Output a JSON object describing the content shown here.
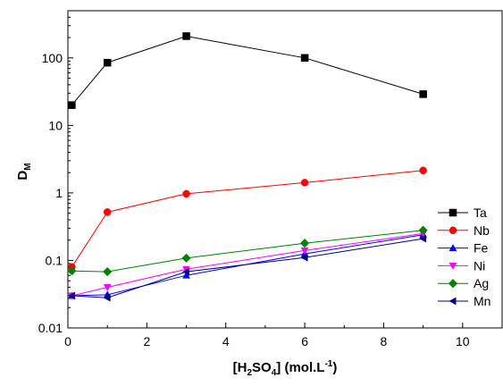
{
  "chart_data": {
    "type": "line",
    "xlabel": {
      "main": "[H",
      "sub1": "2",
      "mid": "SO",
      "sub2": "4",
      "tail": "] (mol.L",
      "sup": "-1",
      "end": ")"
    },
    "ylabel": {
      "main": "D",
      "sub": "M"
    },
    "xlim": [
      0,
      11
    ],
    "ylim": [
      0.01,
      500
    ],
    "yscale": "log",
    "x_ticks": [
      0,
      2,
      4,
      6,
      8,
      10
    ],
    "x_tick_labels": [
      "0",
      "2",
      "4",
      "6",
      "8",
      "10"
    ],
    "y_ticks": [
      0.01,
      0.1,
      1,
      10,
      100
    ],
    "y_tick_labels": [
      "0.01",
      "0.1",
      "1",
      "10",
      "100"
    ],
    "x": [
      0.1,
      1,
      3,
      6,
      9
    ],
    "legend_position": "right",
    "series": [
      {
        "name": "Ta",
        "color": "#000000",
        "marker": "square",
        "values": [
          20,
          85,
          210,
          100,
          29
        ]
      },
      {
        "name": "Nb",
        "color": "#ff0000",
        "marker": "circle",
        "values": [
          0.08,
          0.52,
          0.97,
          1.42,
          2.15
        ]
      },
      {
        "name": "Fe",
        "color": "#0000ff",
        "marker": "triangle-up",
        "values": [
          0.03,
          0.031,
          0.06,
          0.125,
          0.24
        ]
      },
      {
        "name": "Ni",
        "color": "#ff00ff",
        "marker": "triangle-down",
        "values": [
          0.03,
          0.04,
          0.074,
          0.14,
          0.25
        ]
      },
      {
        "name": "Ag",
        "color": "#008000",
        "marker": "diamond",
        "values": [
          0.07,
          0.068,
          0.108,
          0.18,
          0.28
        ]
      },
      {
        "name": "Mn",
        "color": "#000080",
        "marker": "triangle-left",
        "values": [
          0.03,
          0.028,
          0.068,
          0.11,
          0.21
        ]
      }
    ]
  }
}
